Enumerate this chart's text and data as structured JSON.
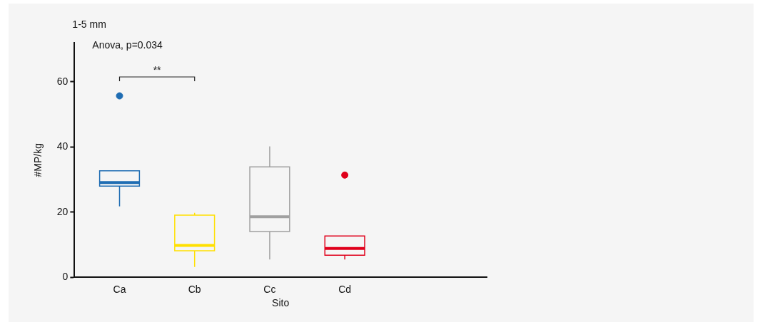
{
  "chart_data": {
    "type": "box",
    "title": "1-5 mm",
    "xlabel": "Sito",
    "ylabel": "#MP/kg",
    "categories": [
      "Ca",
      "Cb",
      "Cc",
      "Cd"
    ],
    "colors": [
      "#1f6db3",
      "#ffe000",
      "#a0a0a0",
      "#e0001b"
    ],
    "boxes": [
      {
        "low": 21.8,
        "q1": 28.0,
        "median": 29.1,
        "q3": 32.7,
        "high": 32.7,
        "outliers": [
          55.7
        ]
      },
      {
        "low": 3.2,
        "q1": 8.2,
        "median": 9.8,
        "q3": 19.1,
        "high": 19.8
      },
      {
        "low": 5.5,
        "q1": 14.1,
        "median": 18.6,
        "q3": 33.9,
        "high": 40.2
      },
      {
        "low": 5.5,
        "q1": 6.8,
        "median": 8.9,
        "q3": 12.7,
        "high": 12.7,
        "outliers": [
          31.4
        ]
      }
    ],
    "ylim": [
      0,
      72
    ],
    "yticks": [
      0,
      20,
      40,
      60
    ],
    "grid": false,
    "legend": false,
    "annotations": [
      "Anova, p=0.034",
      "**"
    ]
  }
}
